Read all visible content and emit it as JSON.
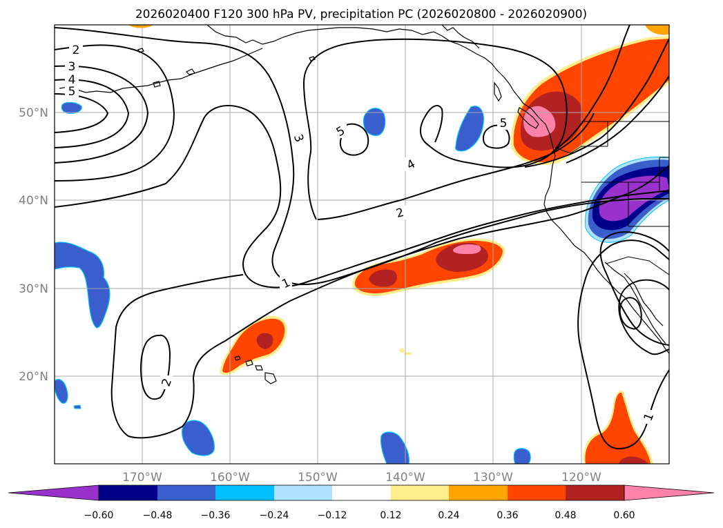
{
  "title": "2026020400 F120 300 hPa PV, precipitation PC (2026020800 - 2026020900)",
  "map": {
    "projection": "PlateCarree",
    "lon_range": [
      -180,
      -110
    ],
    "lat_range": [
      10,
      60
    ],
    "lat_labels": [
      "50°N",
      "40°N",
      "30°N",
      "20°N"
    ],
    "lon_labels": [
      "170°W",
      "160°W",
      "150°W",
      "140°W",
      "130°W",
      "120°W"
    ],
    "gridline_color": "#a9a9a9",
    "coastline_color": "#000000"
  },
  "pv_contours": {
    "levels": [
      1,
      2,
      3,
      4,
      5
    ],
    "labels": [
      "2",
      "3",
      "4",
      "5",
      "3",
      "5",
      "5",
      "4",
      "2",
      "1",
      "2",
      "1"
    ],
    "line_color": "#000000"
  },
  "colorbar": {
    "tick_labels": [
      "−0.60",
      "−0.48",
      "−0.36",
      "−0.24",
      "−0.12",
      "0.12",
      "0.24",
      "0.36",
      "0.48",
      "0.60"
    ],
    "bins": [
      {
        "range": "< -0.60",
        "color": "#9932cc"
      },
      {
        "range": "-0.60 to -0.48",
        "color": "#00008b"
      },
      {
        "range": "-0.48 to -0.36",
        "color": "#3a5fcd"
      },
      {
        "range": "-0.36 to -0.24",
        "color": "#00bfff"
      },
      {
        "range": "-0.24 to -0.12",
        "color": "#b0e2ff"
      },
      {
        "range": "-0.12 to 0.12",
        "color": "#ffffff"
      },
      {
        "range": "0.12 to 0.24",
        "color": "#ffec8b"
      },
      {
        "range": "0.24 to 0.36",
        "color": "#ffa500"
      },
      {
        "range": "0.36 to 0.48",
        "color": "#ff4500"
      },
      {
        "range": "0.48 to 0.60",
        "color": "#b22222"
      },
      {
        "range": "> 0.60",
        "color": "#ff82ab"
      }
    ]
  },
  "precip_colors": {
    "neg_light": "#b0e2ff",
    "neg_cyan": "#00bfff",
    "neg_blue": "#3a5fcd",
    "neg_navy": "#00008b",
    "neg_purple": "#9932cc",
    "pos_yellow": "#ffec8b",
    "pos_orange": "#ffa500",
    "pos_red": "#ff4500",
    "pos_darkred": "#b22222",
    "pos_pink": "#ff82ab"
  }
}
